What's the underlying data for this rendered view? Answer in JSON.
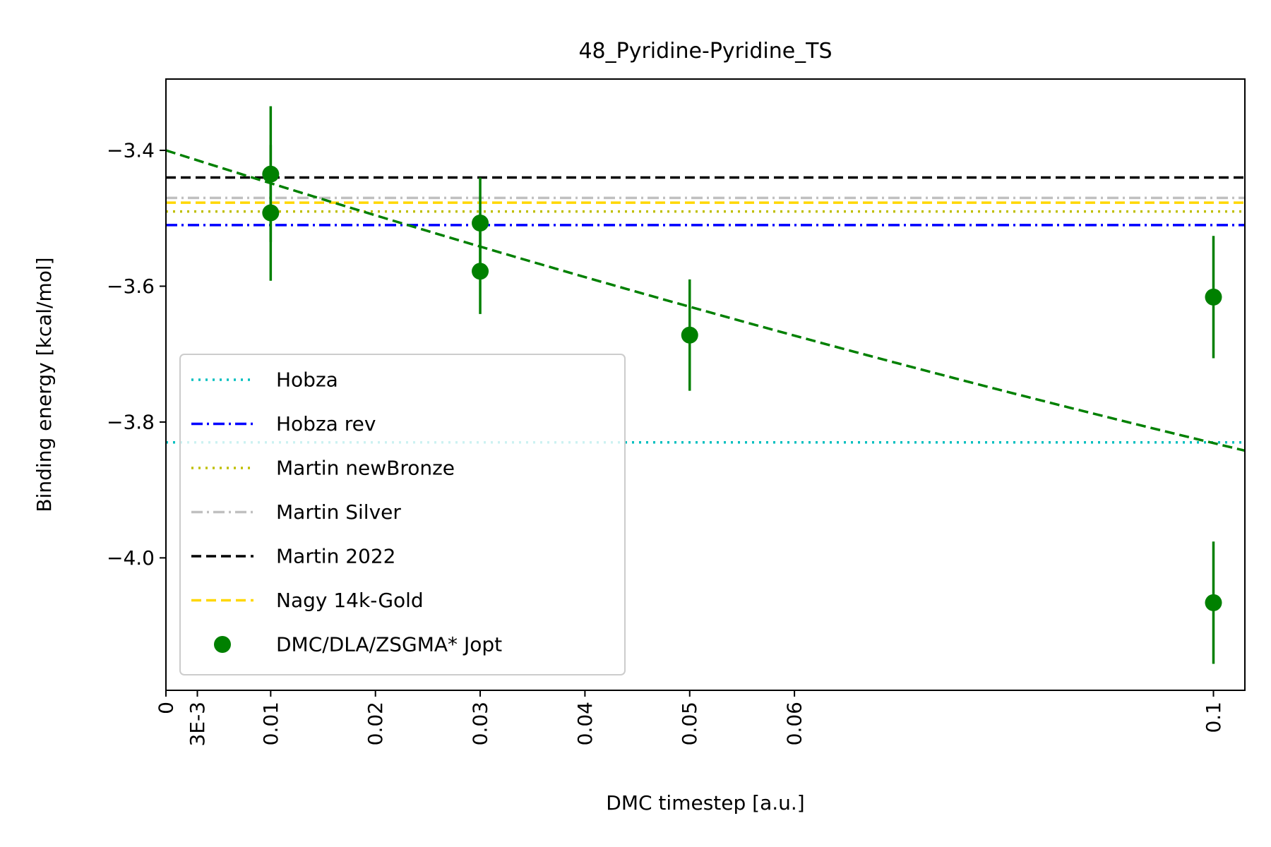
{
  "chart_data": {
    "type": "scatter",
    "title": "48_Pyridine-Pyridine_TS",
    "xlabel": "DMC timestep [a.u.]",
    "ylabel": "Binding energy [kcal/mol]",
    "xlim": [
      0,
      0.103
    ],
    "ylim": [
      -4.195,
      -3.295
    ],
    "x_ticks": [
      {
        "value": 0,
        "label": "0"
      },
      {
        "value": 0.003,
        "label": "3E-3"
      },
      {
        "value": 0.01,
        "label": "0.01"
      },
      {
        "value": 0.02,
        "label": "0.02"
      },
      {
        "value": 0.03,
        "label": "0.03"
      },
      {
        "value": 0.04,
        "label": "0.04"
      },
      {
        "value": 0.05,
        "label": "0.05"
      },
      {
        "value": 0.06,
        "label": "0.06"
      },
      {
        "value": 0.1,
        "label": "0.1"
      }
    ],
    "y_ticks": [
      {
        "value": -3.4,
        "label": "−3.4"
      },
      {
        "value": -3.6,
        "label": "−3.6"
      },
      {
        "value": -3.8,
        "label": "−3.8"
      },
      {
        "value": -4.0,
        "label": "−4.0"
      }
    ],
    "grid": false,
    "legend_position": "lower-left",
    "reference_lines": [
      {
        "name": "Hobza",
        "y": -3.83,
        "color": "#00bfbf",
        "style": "dotted"
      },
      {
        "name": "Hobza rev",
        "y": -3.51,
        "color": "#0000ff",
        "style": "dashdot"
      },
      {
        "name": "Martin newBronze",
        "y": -3.49,
        "color": "#bfbf00",
        "style": "dotted"
      },
      {
        "name": "Martin Silver",
        "y": -3.47,
        "color": "#c0c0c0",
        "style": "dashdot"
      },
      {
        "name": "Martin 2022",
        "y": -3.44,
        "color": "#000000",
        "style": "dashed"
      },
      {
        "name": "Nagy 14k-Gold",
        "y": -3.477,
        "color": "#ffd700",
        "style": "dashed"
      }
    ],
    "series": [
      {
        "name": "DMC/DLA/ZSGMA* Jopt",
        "color": "#008000",
        "points": [
          {
            "x": 0.01,
            "y": -3.435,
            "err": 0.1
          },
          {
            "x": 0.01,
            "y": -3.492,
            "err": 0.1
          },
          {
            "x": 0.03,
            "y": -3.507,
            "err": 0.067
          },
          {
            "x": 0.03,
            "y": -3.578,
            "err": 0.063
          },
          {
            "x": 0.05,
            "y": -3.672,
            "err": 0.082
          },
          {
            "x": 0.1,
            "y": -3.616,
            "err": 0.09
          },
          {
            "x": 0.1,
            "y": -4.066,
            "err": 0.09
          }
        ]
      }
    ],
    "fit_line": {
      "color": "#008000",
      "style": "dashed",
      "y_at_0": -3.4,
      "slope": -4.9,
      "curvature": 5.9
    }
  }
}
